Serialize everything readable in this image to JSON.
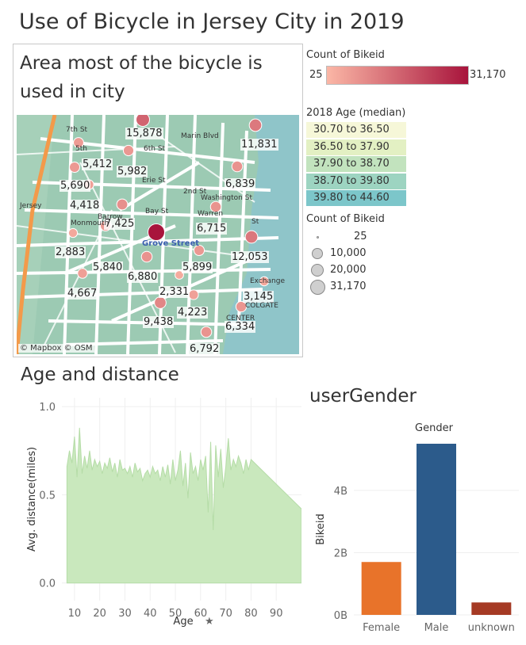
{
  "title": "Use of Bicycle in Jersey City in 2019",
  "map": {
    "title": "Area most of the bicycle is used in city",
    "attribution": "© Mapbox © OSM",
    "station_name": "Grove Street",
    "streets": [
      "7th St",
      "5th",
      "6th St",
      "Erie St",
      "Marin Blvd",
      "2nd St",
      "Bay St",
      "Washington St",
      "Warren",
      "Barrow",
      "Monmouth",
      "Jersey",
      "St",
      "Exchange",
      "COLGATE",
      "CENTER"
    ],
    "points": [
      {
        "label": "15,878",
        "value": 15878
      },
      {
        "label": "11,831",
        "value": 11831
      },
      {
        "label": "5,412",
        "value": 5412
      },
      {
        "label": "5,982",
        "value": 5982
      },
      {
        "label": "5,690",
        "value": 5690
      },
      {
        "label": "6,839",
        "value": 6839
      },
      {
        "label": "4,418",
        "value": 4418
      },
      {
        "label": "7,425",
        "value": 7425
      },
      {
        "label": "6,715",
        "value": 6715
      },
      {
        "label": "2,883",
        "value": 2883
      },
      {
        "label": "12,053",
        "value": 12053
      },
      {
        "label": "5,840",
        "value": 5840
      },
      {
        "label": "5,899",
        "value": 5899
      },
      {
        "label": "6,880",
        "value": 6880
      },
      {
        "label": "4,667",
        "value": 4667
      },
      {
        "label": "2,331",
        "value": 2331
      },
      {
        "label": "3,145",
        "value": 3145
      },
      {
        "label": "4,223",
        "value": 4223
      },
      {
        "label": "9,438",
        "value": 9438
      },
      {
        "label": "6,334",
        "value": 6334
      },
      {
        "label": "6,792",
        "value": 6792
      },
      {
        "label": "",
        "value": 31170
      }
    ]
  },
  "legend_color": {
    "title": "Count of Bikeid",
    "min": "25",
    "max": "31,170",
    "color_min": "#fbb7a6",
    "color_max": "#a8143c"
  },
  "legend_age": {
    "title": "2018 Age (median)",
    "items": [
      {
        "label": "30.70 to 36.50",
        "color": "#f6f7d8"
      },
      {
        "label": "36.50 to 37.90",
        "color": "#e3f0c3"
      },
      {
        "label": "37.90 to 38.70",
        "color": "#c2e3be"
      },
      {
        "label": "38.70 to 39.80",
        "color": "#9dd4c1"
      },
      {
        "label": "39.80 to 44.60",
        "color": "#7cc6ca"
      }
    ]
  },
  "legend_size": {
    "title": "Count of Bikeid",
    "items": [
      {
        "label": "25",
        "value": 25
      },
      {
        "label": "10,000",
        "value": 10000
      },
      {
        "label": "20,000",
        "value": 20000
      },
      {
        "label": "31,170",
        "value": 31170
      }
    ]
  },
  "chart_data": [
    {
      "type": "area",
      "title": "Age and distance",
      "xlabel": "Age",
      "ylabel": "Avg. distance(miles)",
      "xlim": [
        5,
        100
      ],
      "ylim": [
        -0.1,
        1.05
      ],
      "xticks": [
        10,
        20,
        30,
        40,
        50,
        60,
        70,
        80,
        90
      ],
      "yticks": [
        0.0,
        0.5,
        1.0
      ],
      "ytick_labels": [
        "0.0",
        "0.5",
        "1.0"
      ],
      "color": "#c9e8bd",
      "x": [
        7,
        8,
        9,
        10,
        11,
        12,
        13,
        14,
        15,
        16,
        17,
        18,
        19,
        20,
        21,
        22,
        23,
        24,
        25,
        26,
        27,
        28,
        29,
        30,
        31,
        32,
        33,
        34,
        35,
        36,
        37,
        38,
        39,
        40,
        41,
        42,
        43,
        44,
        45,
        46,
        47,
        48,
        49,
        50,
        51,
        52,
        53,
        54,
        55,
        56,
        57,
        58,
        59,
        60,
        61,
        62,
        63,
        64,
        65,
        66,
        67,
        68,
        69,
        70,
        71,
        72,
        73,
        74,
        75,
        76,
        77,
        78,
        79,
        80,
        100
      ],
      "y": [
        0.66,
        0.75,
        0.68,
        0.83,
        0.6,
        0.88,
        0.62,
        0.72,
        0.65,
        0.75,
        0.64,
        0.7,
        0.66,
        0.69,
        0.62,
        0.68,
        0.65,
        0.71,
        0.63,
        0.68,
        0.6,
        0.7,
        0.64,
        0.65,
        0.62,
        0.66,
        0.6,
        0.68,
        0.63,
        0.65,
        0.58,
        0.62,
        0.64,
        0.6,
        0.66,
        0.62,
        0.64,
        0.58,
        0.66,
        0.6,
        0.67,
        0.56,
        0.7,
        0.58,
        0.64,
        0.75,
        0.55,
        0.68,
        0.48,
        0.74,
        0.62,
        0.66,
        0.58,
        0.7,
        0.64,
        0.72,
        0.4,
        0.8,
        0.3,
        0.78,
        0.6,
        0.76,
        0.54,
        0.66,
        0.82,
        0.64,
        0.7,
        0.66,
        0.72,
        0.68,
        0.62,
        0.7,
        0.64,
        0.7,
        0.42
      ]
    },
    {
      "type": "bar",
      "title": "userGender",
      "subtitle": "Gender",
      "categories": [
        "Female",
        "Male",
        "unknown"
      ],
      "values": [
        1.7,
        5.5,
        0.4
      ],
      "colors": [
        "#e8732a",
        "#2c5b8b",
        "#a53a24"
      ],
      "ylabel": "Bikeid",
      "ylim": [
        0,
        5.5
      ],
      "yticks": [
        0,
        2,
        4
      ],
      "ytick_labels": [
        "0B",
        "2B",
        "4B"
      ]
    }
  ]
}
